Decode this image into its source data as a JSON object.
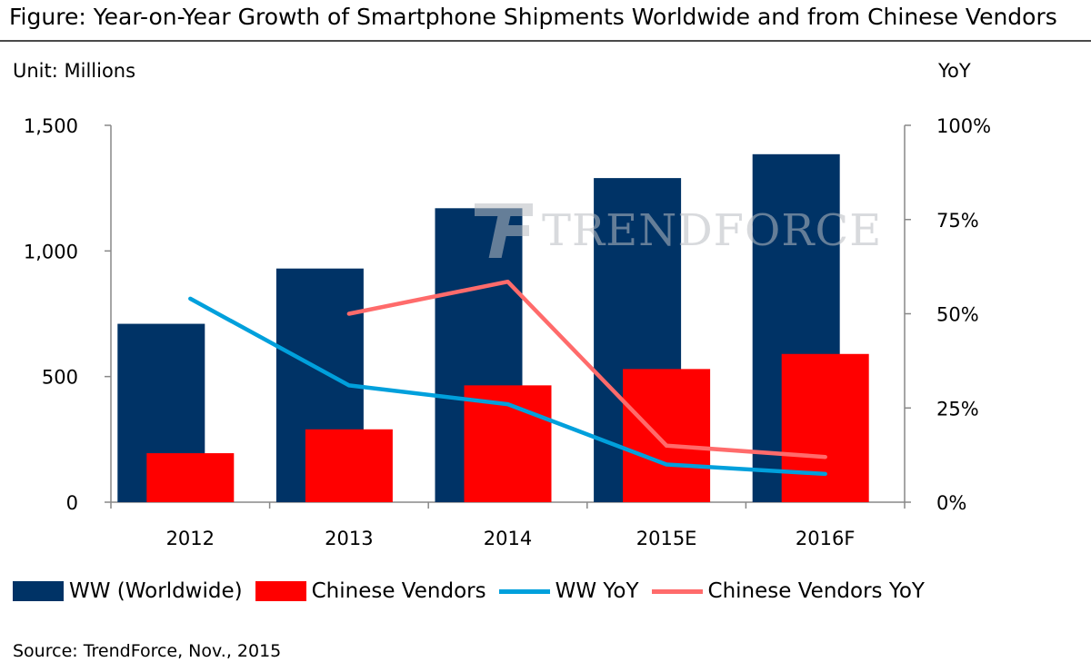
{
  "title": "Figure: Year-on-Year Growth of Smartphone Shipments Worldwide and from Chinese Vendors",
  "unit_left": "Unit: Millions",
  "unit_right": "YoY",
  "watermark": "TRENDFORCE",
  "source": "Source: TrendForce, Nov., 2015",
  "legend": {
    "ww": "WW (Worldwide)",
    "cn": "Chinese Vendors",
    "ww_yoy": "WW YoY",
    "cn_yoy": "Chinese Vendors YoY"
  },
  "colors": {
    "ww": "#003366",
    "cn": "#ff0000",
    "ww_yoy": "#00a0dc",
    "cn_yoy": "#ff6b6b",
    "axis": "#888888"
  },
  "chart_data": {
    "type": "bar",
    "categories": [
      "2012",
      "2013",
      "2014",
      "2015E",
      "2016F"
    ],
    "left_axis": {
      "ylim": [
        0,
        1500
      ],
      "ticks": [
        "0",
        "500",
        "1,000",
        "1,500"
      ],
      "tick_values": [
        0,
        500,
        1000,
        1500
      ]
    },
    "right_axis": {
      "ylim": [
        0,
        100
      ],
      "ticks": [
        "0%",
        "25%",
        "50%",
        "75%",
        "100%"
      ],
      "tick_values": [
        0,
        25,
        50,
        75,
        100
      ]
    },
    "series": [
      {
        "name": "WW (Worldwide)",
        "kind": "bar",
        "axis": "left",
        "values": [
          710,
          930,
          1170,
          1290,
          1385
        ]
      },
      {
        "name": "Chinese Vendors",
        "kind": "bar",
        "axis": "left",
        "values": [
          195,
          290,
          465,
          530,
          590
        ]
      },
      {
        "name": "WW YoY",
        "kind": "line",
        "axis": "right",
        "values": [
          54,
          31,
          26,
          10,
          7.5
        ]
      },
      {
        "name": "Chinese Vendors YoY",
        "kind": "line",
        "axis": "right",
        "values": [
          null,
          50,
          58.5,
          15,
          12
        ]
      }
    ]
  }
}
